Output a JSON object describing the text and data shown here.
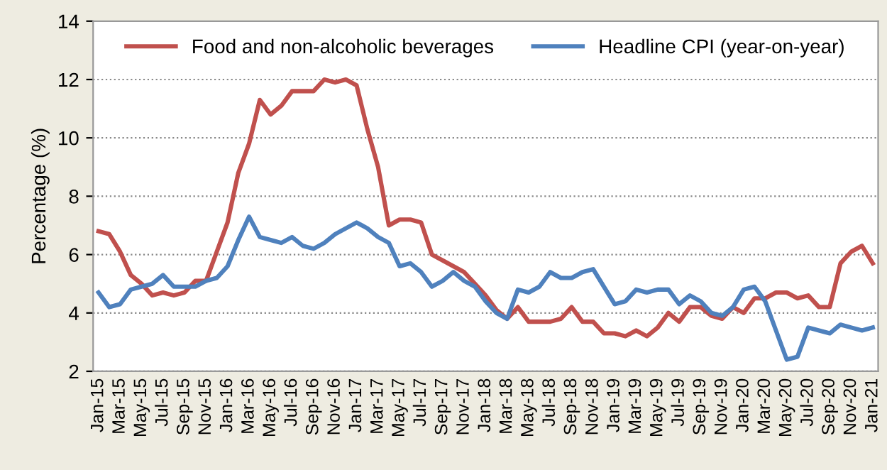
{
  "chart_data": {
    "type": "line",
    "ylabel": "Percentage (%)",
    "categories": [
      "Jan-15",
      null,
      "Mar-15",
      null,
      "May-15",
      null,
      "Jul-15",
      null,
      "Sep-15",
      null,
      "Nov-15",
      null,
      "Jan-16",
      null,
      "Mar-16",
      null,
      "May-16",
      null,
      "Jul-16",
      null,
      "Sep-16",
      null,
      "Nov-16",
      null,
      "Jan-17",
      null,
      "Mar-17",
      null,
      "May-17",
      null,
      "Jul-17",
      null,
      "Sep-17",
      null,
      "Nov-17",
      null,
      "Jan-18",
      null,
      "Mar-18",
      null,
      "May-18",
      null,
      "Jul-18",
      null,
      "Sep-18",
      null,
      "Nov-18",
      null,
      "Jan-19",
      null,
      "Mar-19",
      null,
      "May-19",
      null,
      "Jul-19",
      null,
      "Sep-19",
      null,
      "Nov-19",
      null,
      "Jan-20",
      null,
      "Mar-20",
      null,
      "May-20",
      null,
      "Jul-20",
      null,
      "Sep-20",
      null,
      "Nov-20",
      null,
      "Jan-21"
    ],
    "series": [
      {
        "name": "Food and non-alcoholic beverages",
        "color": "#c0504d",
        "values": [
          6.8,
          6.7,
          6.1,
          5.3,
          5.0,
          4.6,
          4.7,
          4.6,
          4.7,
          5.1,
          5.1,
          6.1,
          7.1,
          8.8,
          9.8,
          11.3,
          10.8,
          11.1,
          11.6,
          11.6,
          11.6,
          12.0,
          11.9,
          12.0,
          11.8,
          10.3,
          9.0,
          7.0,
          7.2,
          7.2,
          7.1,
          6.0,
          5.8,
          5.6,
          5.4,
          5.0,
          4.6,
          4.1,
          3.8,
          4.2,
          3.7,
          3.7,
          3.7,
          3.8,
          4.2,
          3.7,
          3.7,
          3.3,
          3.3,
          3.2,
          3.4,
          3.2,
          3.5,
          4.0,
          3.7,
          4.2,
          4.2,
          3.9,
          3.8,
          4.2,
          4.0,
          4.5,
          4.5,
          4.7,
          4.7,
          4.5,
          4.6,
          4.2,
          4.2,
          5.7,
          6.1,
          6.3,
          5.7
        ]
      },
      {
        "name": "Headline CPI (year-on-year)",
        "color": "#4f81bd",
        "values": [
          4.7,
          4.2,
          4.3,
          4.8,
          4.9,
          5.0,
          5.3,
          4.9,
          4.9,
          4.9,
          5.1,
          5.2,
          5.6,
          6.5,
          7.3,
          6.6,
          6.5,
          6.4,
          6.6,
          6.3,
          6.2,
          6.4,
          6.7,
          6.9,
          7.1,
          6.9,
          6.6,
          6.4,
          5.6,
          5.7,
          5.4,
          4.9,
          5.1,
          5.4,
          5.1,
          4.9,
          4.4,
          4.0,
          3.8,
          4.8,
          4.7,
          4.9,
          5.4,
          5.2,
          5.2,
          5.4,
          5.5,
          4.9,
          4.3,
          4.4,
          4.8,
          4.7,
          4.8,
          4.8,
          4.3,
          4.6,
          4.4,
          4.0,
          3.9,
          4.2,
          4.8,
          4.9,
          4.4,
          3.4,
          2.4,
          2.5,
          3.5,
          3.4,
          3.3,
          3.6,
          3.5,
          3.4,
          3.5
        ]
      }
    ],
    "ylim": [
      2,
      14
    ],
    "yticks": [
      2,
      4,
      6,
      8,
      10,
      12,
      14
    ],
    "grid": "y",
    "legend": "top",
    "marker": "none",
    "line_style": "solid"
  }
}
